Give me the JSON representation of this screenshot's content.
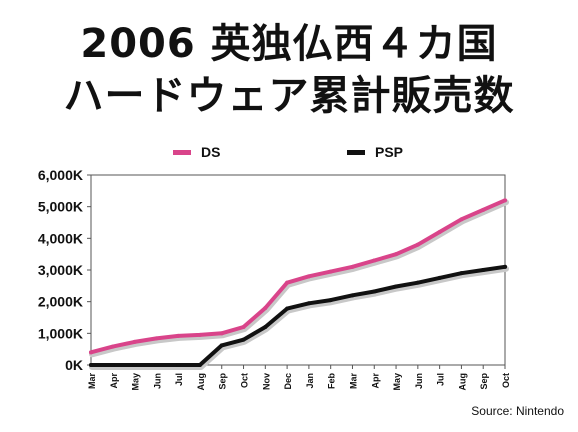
{
  "title_line1": "2006 英独仏西４カ国",
  "title_line2": "ハードウェア累計販売数",
  "source": "Source: Nintendo",
  "colors": {
    "DS": "#d9448a",
    "PSP": "#111111",
    "axis": "#555555",
    "grid": "#999999"
  },
  "chart_data": {
    "type": "line",
    "x": [
      "Mar",
      "Apr",
      "May",
      "Jun",
      "Jul",
      "Aug",
      "Sep",
      "Oct",
      "Nov",
      "Dec",
      "Jan",
      "Feb",
      "Mar",
      "Apr",
      "May",
      "Jun",
      "Jul",
      "Aug",
      "Sep",
      "Oct"
    ],
    "yticks": [
      "0K",
      "1,000K",
      "2,000K",
      "3,000K",
      "4,000K",
      "5,000K",
      "6,000K"
    ],
    "ylim": [
      0,
      6000
    ],
    "grid": false,
    "legend_placement": "top",
    "series": [
      {
        "name": "DS",
        "values": [
          400,
          580,
          730,
          840,
          920,
          950,
          1000,
          1200,
          1800,
          2600,
          2800,
          2950,
          3100,
          3300,
          3500,
          3800,
          4200,
          4600,
          4900,
          5200
        ]
      },
      {
        "name": "PSP",
        "values": [
          0,
          0,
          0,
          0,
          0,
          0,
          620,
          800,
          1200,
          1780,
          1950,
          2050,
          2200,
          2320,
          2480,
          2600,
          2750,
          2900,
          3000,
          3100
        ]
      }
    ]
  }
}
